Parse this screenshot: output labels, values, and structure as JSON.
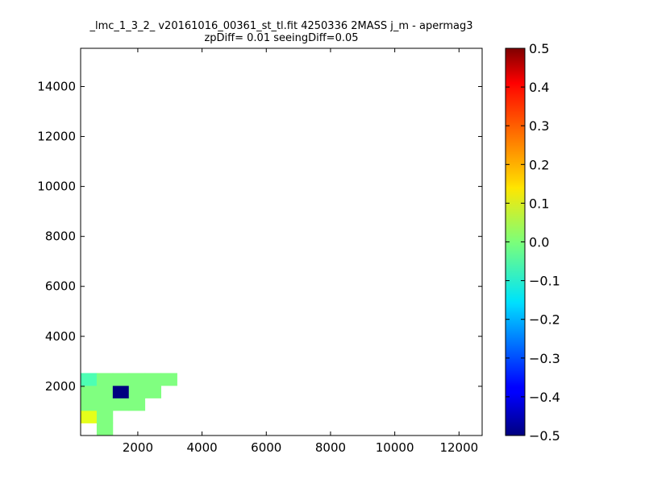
{
  "chart_data": {
    "type": "heatmap",
    "title_line1": "_lmc_1_3_2_ v20161016_00361_st_tl.fit 4250336 2MASS j_m - apermag3",
    "title_line2": "zpDiff= 0.01 seeingDiff=0.05",
    "xlabel": "",
    "ylabel": "",
    "xlim": [
      220,
      12720
    ],
    "ylim": [
      30,
      15530
    ],
    "xticks": [
      "2000",
      "4000",
      "6000",
      "8000",
      "10000",
      "12000"
    ],
    "yticks": [
      "2000",
      "4000",
      "6000",
      "8000",
      "10000",
      "12000",
      "14000"
    ],
    "grid": false,
    "cell_size": [
      500,
      500
    ],
    "x_cell_origin": 220,
    "y_cell_origin": 30,
    "color_range": [
      -0.5,
      0.5
    ],
    "colormap": "jet",
    "colorbar_ticks": [
      "0.5",
      "0.4",
      "0.3",
      "0.2",
      "0.1",
      "0.0",
      "−0.1",
      "−0.2",
      "−0.3",
      "−0.4",
      "−0.5"
    ],
    "rows": [
      ". 0 . . . . . . . . . . . . . . . . . . . . . . .",
      "0.1 0 . . . . . . . . . . . . . . . . . . . . . .",
      "0 0 0 0 . . . . . . . . . . . . . . . . . . . . .",
      "0 0 -0.5 0 0 . . . . . . . . . . . . . . . . . . .",
      "-0.05 0 0 0 0 0 . . . . . . . . . . . . . . . . . .",
      ". . . . . . . . . . . . . . . . . . . . . . . . .",
      ". . . . . . . . . . . . . . . . . . . . . . . . .",
      ". . . . . . . . . . . . . . . . . . . . . . . . .",
      ". . . . . . . . . . . . . . . . . . . . . . . . .",
      ". . . . . . . . . . . . . . . . . . . . . . . . .",
      ". . . . . . . . . . . . . . . . . . . . . . . . .",
      ". . . . . . . . . . . . . . . . . . . . . . . . .",
      ". . . . . . . . . . . . . . . . . . . . . . . . .",
      ". . . . . . . . . . . . . . . . . . . . . . . . .",
      ". . . . . . . . . . . . . . . . . . . . . . . . .",
      ". . . . . . . . . . . . . . . . . . . . . . . . .",
      ". . . . . . . . . . . . . . . . . . . . . . . . .",
      ". . . . . . . . . . . . . . . . . . . . . . . . .",
      ". . . . . . . . . . . . . . . . . . . . . . . . .",
      ". . . . . . . . . . . . . . . . . . . . . . . . .",
      ". . . . . . . . . . . . . . . . . . . . . . . . .",
      ". . . . . . . . . . . . . . . . . . . . . . . . .",
      ". . . . . . . . . . . . . . . . . . . . . . . . .",
      ". . . . . . . . . . . . . . . . . . . . . . . . .",
      ". . . . . . . . . . . . . . . . . . . . . . . . .",
      ". . . . . . . . . . . . . . . . . . . . . . . . .",
      ". . . . . . . . . . . . . . . . . . . . . . . . .",
      ". . . . . . . . . . . . . . . . . . . . . . . . .",
      ". . . . . . . . . . . . . . . . . . . . . . . . .",
      ". . . . . . . . . . . . . . . . . . . . . . . . .",
      ". . . . . . . . . . . . . . . . . . . . . . . . ."
    ]
  }
}
